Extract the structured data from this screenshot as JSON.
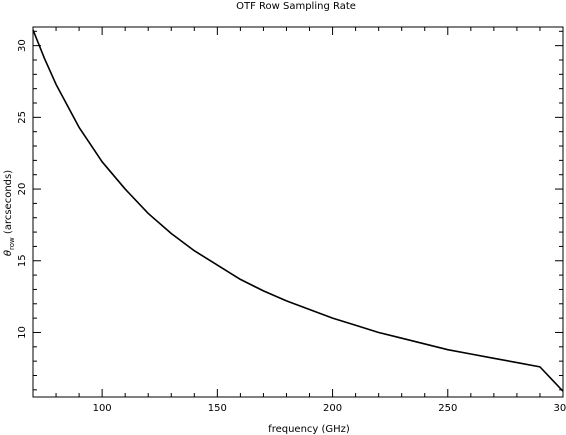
{
  "chart_data": {
    "type": "line",
    "title": "OTF Row Sampling Rate",
    "xlabel": "frequency (GHz)",
    "ylabel_symbol": "θ",
    "ylabel_subscript": "row",
    "ylabel_rest": " (arcseconds)",
    "xlim": [
      70,
      300
    ],
    "ylim": [
      5.5,
      31.3
    ],
    "xticks_major": [
      100,
      150,
      200,
      250,
      300
    ],
    "xticks_minor_step": 10,
    "yticks_major": [
      10,
      15,
      20,
      25,
      30
    ],
    "yticks_minor_step": 1,
    "grid": false,
    "legend": "none",
    "series": [
      {
        "x": [
          70,
          75,
          80,
          85,
          90,
          95,
          100,
          110,
          120,
          130,
          140,
          150,
          160,
          170,
          180,
          190,
          200,
          210,
          220,
          230,
          240,
          250,
          260,
          270,
          280,
          290,
          300
        ],
        "y": [
          31.1,
          29.1,
          27.3,
          25.8,
          24.3,
          23.1,
          21.9,
          20.0,
          18.3,
          16.9,
          15.7,
          14.7,
          13.7,
          12.9,
          12.2,
          11.6,
          11.0,
          10.5,
          10.0,
          9.6,
          9.2,
          8.8,
          8.5,
          8.2,
          7.9,
          7.6,
          5.9
        ]
      }
    ],
    "line_color": "#000000"
  }
}
